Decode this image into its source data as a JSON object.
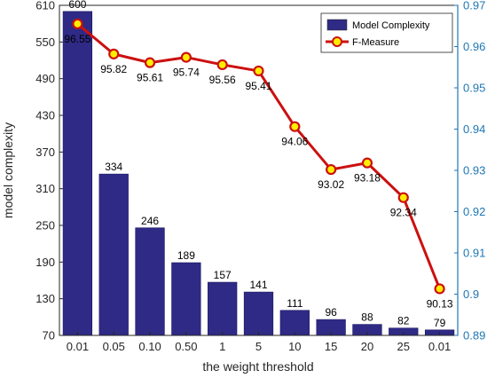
{
  "chart_data": {
    "type": "bar+line",
    "xlabel": "the weight threshold",
    "categories": [
      "0.01",
      "0.05",
      "0.10",
      "0.50",
      "1",
      "5",
      "10",
      "15",
      "20",
      "25",
      "0.01"
    ],
    "y_left": {
      "label": "model complexity",
      "range": [
        70,
        610
      ],
      "ticks": [
        70,
        130,
        190,
        250,
        310,
        370,
        430,
        490,
        550,
        610
      ]
    },
    "y_right": {
      "label": "",
      "range": [
        0.89,
        0.97
      ],
      "ticks": [
        "0.89",
        "0.9",
        "0.91",
        "0.92",
        "0.93",
        "0.94",
        "0.95",
        "0.96",
        "0.97"
      ]
    },
    "bars": {
      "name": "Model Complexity",
      "values": [
        600,
        334,
        246,
        189,
        157,
        141,
        111,
        96,
        88,
        82,
        79
      ],
      "labels": [
        "600",
        "334",
        "246",
        "189",
        "157",
        "141",
        "111",
        "96",
        "88",
        "82",
        "79"
      ],
      "color": "#2f2a85"
    },
    "line": {
      "name": "F-Measure",
      "values": [
        0.9655,
        0.9582,
        0.9561,
        0.9574,
        0.9556,
        0.9541,
        0.9406,
        0.9302,
        0.9318,
        0.9234,
        0.9013
      ],
      "labels": [
        "96.55",
        "95.82",
        "95.61",
        "95.74",
        "95.56",
        "95.41",
        "94.06",
        "93.02",
        "93.18",
        "92.34",
        "90.13"
      ],
      "color": "#cc1010",
      "marker_fill": "#ffee00"
    },
    "legend_position": "top-right",
    "grid": false,
    "right_axis_color": "#1f77b4"
  }
}
